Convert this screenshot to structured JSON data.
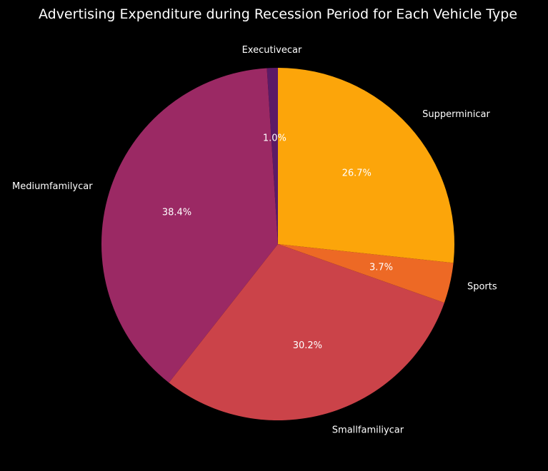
{
  "chart_data": {
    "type": "pie",
    "title": "Advertising Expenditure during Recession Period for Each Vehicle Type",
    "categories": [
      "Executivecar",
      "Mediumfamilycar",
      "Smallfamiliycar",
      "Sports",
      "Supperminicar"
    ],
    "values": [
      1.0,
      38.4,
      30.2,
      3.7,
      26.7
    ],
    "value_labels": [
      "1.0%",
      "38.4%",
      "30.2%",
      "3.7%",
      "26.7%"
    ],
    "colors": [
      "#5c1a66",
      "#9b2964",
      "#cb4349",
      "#ed6925",
      "#fca50a"
    ],
    "start_angle_deg": 90,
    "direction": "counterclockwise",
    "legend": "none"
  }
}
